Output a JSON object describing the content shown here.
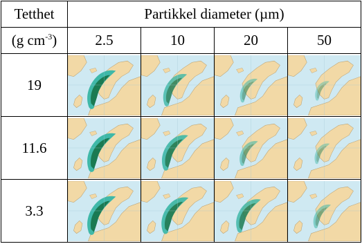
{
  "table": {
    "density_header_line1": "Tetthet",
    "density_header_unit_prefix": "(g cm",
    "density_header_unit_exp": "-3",
    "density_header_unit_suffix": ")",
    "diameter_header": "Partikkel diameter (µm)",
    "diameters": [
      "2.5",
      "10",
      "20",
      "50"
    ],
    "densities": [
      "19",
      "11.6",
      "3.3"
    ],
    "deposition_levels": [
      [
        1.0,
        0.7,
        0.3,
        0.1
      ],
      [
        1.0,
        0.85,
        0.35,
        0.15
      ],
      [
        1.0,
        0.9,
        0.75,
        0.3
      ]
    ]
  },
  "colors": {
    "sea": "#cfe9f2",
    "land": "#f2d9a6",
    "plume_dark": "#1a7a52",
    "plume_light": "#3fb8a8"
  }
}
